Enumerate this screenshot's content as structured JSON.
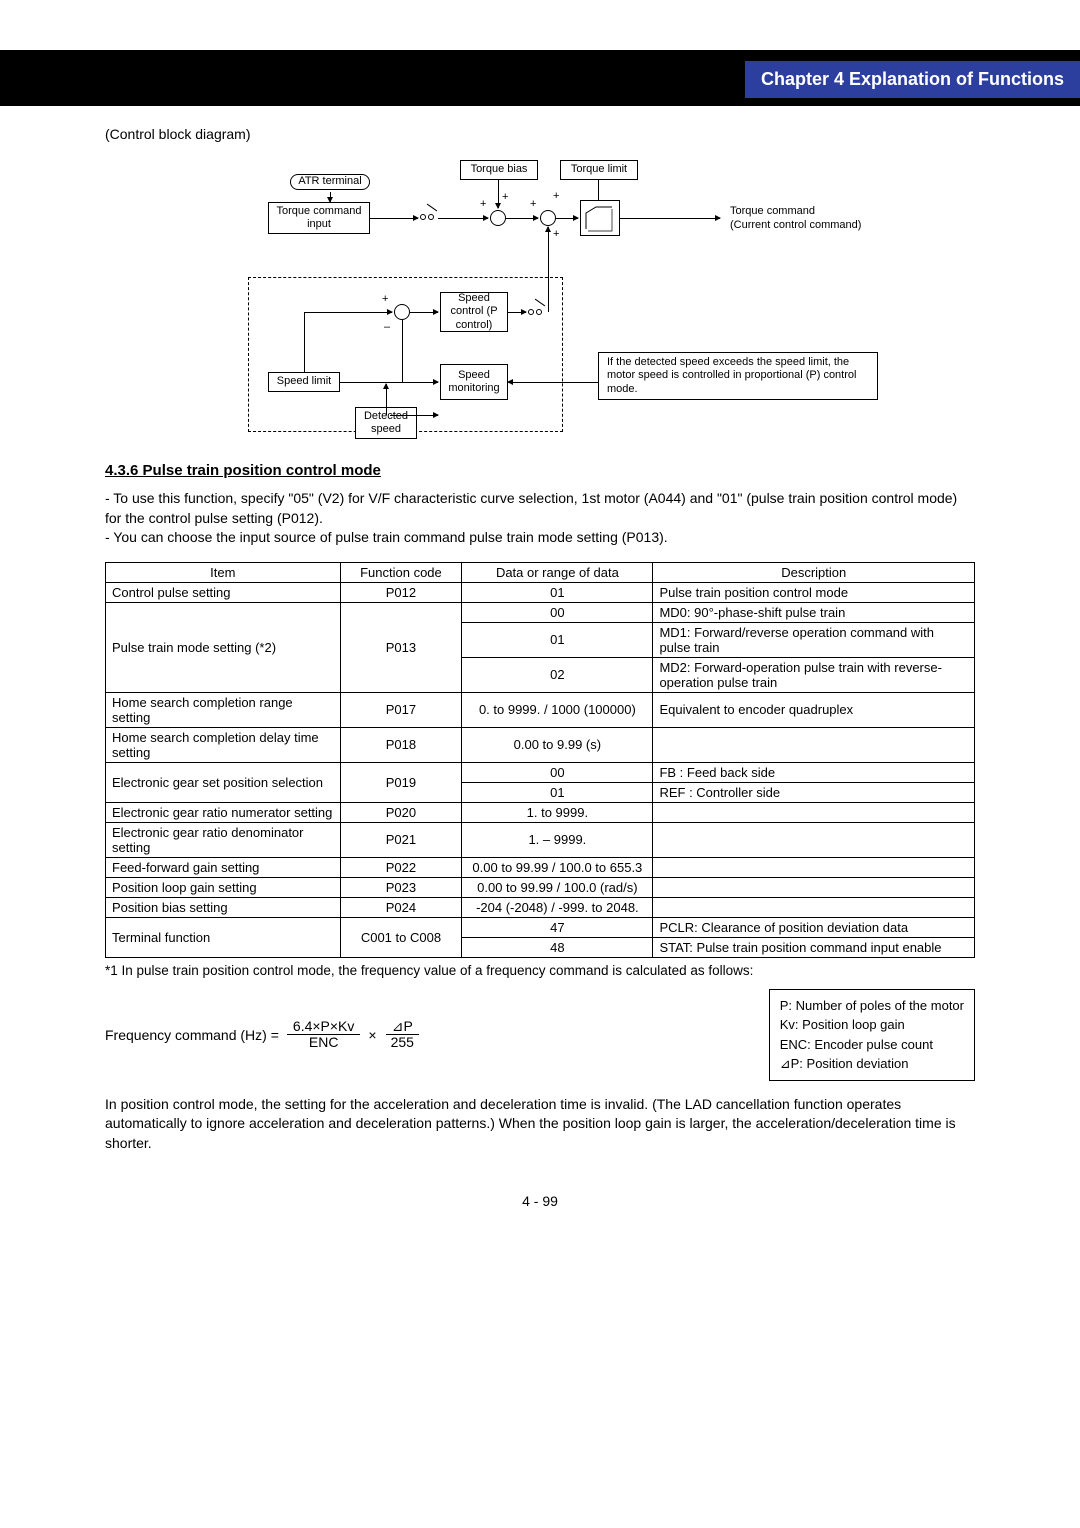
{
  "header": {
    "chapter_title": "Chapter 4 Explanation of Functions"
  },
  "diagram": {
    "intro": "(Control block diagram)",
    "atr_terminal": "ATR terminal",
    "torque_cmd_input": "Torque command input",
    "torque_bias": "Torque bias",
    "torque_limit": "Torque limit",
    "torque_cmd_out1": "Torque command",
    "torque_cmd_out2": "(Current control command)",
    "speed_control": "Speed control (P control)",
    "speed_limit": "Speed limit",
    "speed_monitoring": "Speed monitoring",
    "detected_speed": "Detected speed",
    "note": "If the detected speed exceeds the speed limit, the motor speed is controlled in proportional (P) control mode."
  },
  "section": {
    "title": "4.3.6 Pulse train position control mode",
    "text": "- To use this function, specify \"05\" (V2) for V/F characteristic curve selection, 1st motor (A044) and \"01\" (pulse train position control mode) for the control pulse setting (P012).\n- You can choose the input source of pulse train command pulse train mode setting (P013)."
  },
  "table": {
    "headers": [
      "Item",
      "Function code",
      "Data or range of data",
      "Description"
    ],
    "rows": [
      {
        "item": "Control pulse setting",
        "code": "P012",
        "data": "01",
        "desc": "Pulse train position control mode",
        "rs_item": 1,
        "rs_code": 1
      },
      {
        "item": "Pulse train mode setting (*2)",
        "code": "P013",
        "data": "00",
        "desc": "MD0: 90°-phase-shift pulse train",
        "rs_item": 3,
        "rs_code": 3
      },
      {
        "data": "01",
        "desc": "MD1: Forward/reverse operation command with pulse train"
      },
      {
        "data": "02",
        "desc": "MD2: Forward-operation pulse train with reverse-operation pulse train"
      },
      {
        "item": "Home search completion range setting",
        "code": "P017",
        "data": "0. to 9999. / 1000 (100000)",
        "desc": "Equivalent to encoder quadruplex",
        "rs_item": 1,
        "rs_code": 1
      },
      {
        "item": "Home search completion delay time setting",
        "code": "P018",
        "data": "0.00 to 9.99 (s)",
        "desc": "",
        "rs_item": 1,
        "rs_code": 1
      },
      {
        "item": "Electronic gear set position selection",
        "code": "P019",
        "data": "00",
        "desc": "FB : Feed back side",
        "rs_item": 2,
        "rs_code": 2
      },
      {
        "data": "01",
        "desc": "REF : Controller side"
      },
      {
        "item": "Electronic gear ratio numerator setting",
        "code": "P020",
        "data": "1. to 9999.",
        "desc": "",
        "rs_item": 1,
        "rs_code": 1
      },
      {
        "item": "Electronic gear ratio denominator setting",
        "code": "P021",
        "data": "1. – 9999.",
        "desc": "",
        "rs_item": 1,
        "rs_code": 1
      },
      {
        "item": "Feed-forward gain setting",
        "code": "P022",
        "data": "0.00 to 99.99 / 100.0 to 655.3",
        "desc": "",
        "rs_item": 1,
        "rs_code": 1
      },
      {
        "item": "Position loop gain setting",
        "code": "P023",
        "data": "0.00 to 99.99 / 100.0 (rad/s)",
        "desc": "",
        "rs_item": 1,
        "rs_code": 1
      },
      {
        "item": "Position bias setting",
        "code": "P024",
        "data": "-204 (-2048) / -999. to 2048.",
        "desc": "",
        "rs_item": 1,
        "rs_code": 1
      },
      {
        "item": "Terminal function",
        "code": "C001 to C008",
        "data": "47",
        "desc": "PCLR: Clearance of position deviation data",
        "rs_item": 2,
        "rs_code": 2
      },
      {
        "data": "48",
        "desc": "STAT: Pulse train position command input enable"
      }
    ]
  },
  "footnote1": "*1   In pulse train position control mode, the frequency value of a frequency command is calculated as follows:",
  "formula": {
    "lhs": "Frequency command (Hz) =",
    "frac1_num": "6.4×P×Kv",
    "frac1_den": "ENC",
    "times": "×",
    "frac2_num": "⊿P",
    "frac2_den": "255"
  },
  "legend": {
    "l1": "P: Number of poles of the motor",
    "l2": "Kv: Position loop gain",
    "l3": "ENC: Encoder pulse count",
    "l4": "⊿P: Position deviation"
  },
  "body_text": "In position control mode, the setting for the acceleration and deceleration time is invalid. (The LAD cancellation function operates automatically to ignore acceleration and deceleration patterns.) When the position loop gain is larger, the acceleration/deceleration time is shorter.",
  "page_num": "4 - 99"
}
